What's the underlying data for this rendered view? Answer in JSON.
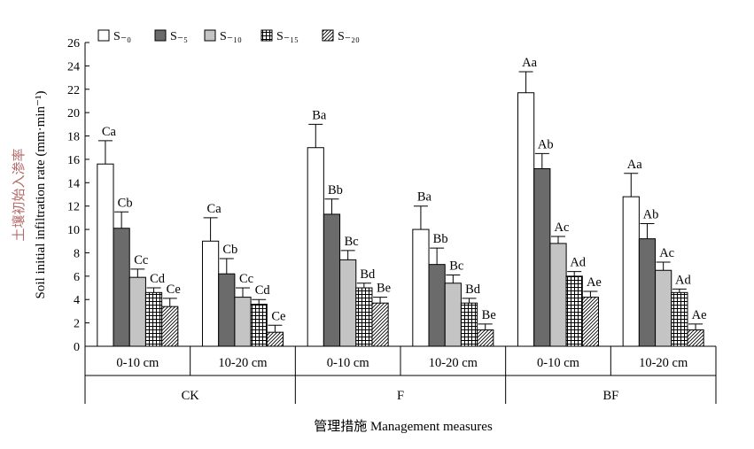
{
  "chart_data": {
    "type": "bar",
    "xlabel": "管理措施 Management measures",
    "ylabel_cn": "土壤初始入渗率",
    "ylabel_en": "Soil initial infiltration rate (mm·min⁻¹)",
    "ylim": [
      0,
      26
    ],
    "yticks": [
      0,
      2,
      4,
      6,
      8,
      10,
      12,
      14,
      16,
      18,
      20,
      22,
      24,
      26
    ],
    "legend_position": "top-left",
    "groups": [
      {
        "label": "CK",
        "subgroups": [
          "0-10 cm",
          "10-20 cm"
        ]
      },
      {
        "label": "F",
        "subgroups": [
          "0-10 cm",
          "10-20 cm"
        ]
      },
      {
        "label": "BF",
        "subgroups": [
          "0-10 cm",
          "10-20 cm"
        ]
      }
    ],
    "categories": [
      "0-10 cm",
      "10-20 cm",
      "0-10 cm",
      "10-20 cm",
      "0-10 cm",
      "10-20 cm"
    ],
    "series": [
      {
        "name": "S₋₀",
        "pattern": "white",
        "values": [
          15.6,
          9.0,
          17.0,
          10.0,
          21.7,
          12.8
        ],
        "errors": [
          2.0,
          2.0,
          2.0,
          2.0,
          1.8,
          2.0
        ],
        "labels": [
          "Ca",
          "Ca",
          "Ba",
          "Ba",
          "Aa",
          "Aa"
        ]
      },
      {
        "name": "S₋₅",
        "pattern": "dark",
        "values": [
          10.1,
          6.2,
          11.3,
          7.0,
          15.2,
          9.2
        ],
        "errors": [
          1.4,
          1.3,
          1.3,
          1.4,
          1.3,
          1.3
        ],
        "labels": [
          "Cb",
          "Cb",
          "Bb",
          "Bb",
          "Ab",
          "Ab"
        ]
      },
      {
        "name": "S₋₁₀",
        "pattern": "light",
        "values": [
          5.9,
          4.2,
          7.4,
          5.4,
          8.8,
          6.5
        ],
        "errors": [
          0.7,
          0.8,
          0.8,
          0.7,
          0.6,
          0.7
        ],
        "labels": [
          "Cc",
          "Cc",
          "Bc",
          "Bc",
          "Ac",
          "Ac"
        ]
      },
      {
        "name": "S₋₁₅",
        "pattern": "grid",
        "values": [
          4.6,
          3.6,
          5.0,
          3.7,
          6.0,
          4.6
        ],
        "errors": [
          0.4,
          0.4,
          0.4,
          0.4,
          0.4,
          0.3
        ],
        "labels": [
          "Cd",
          "Cd",
          "Bd",
          "Bd",
          "Ad",
          "Ad"
        ]
      },
      {
        "name": "S₋₂₀",
        "pattern": "hatch",
        "values": [
          3.4,
          1.2,
          3.7,
          1.4,
          4.2,
          1.4
        ],
        "errors": [
          0.7,
          0.6,
          0.5,
          0.5,
          0.5,
          0.5
        ],
        "labels": [
          "Ce",
          "Ce",
          "Be",
          "Be",
          "Ae",
          "Ae"
        ]
      }
    ]
  }
}
